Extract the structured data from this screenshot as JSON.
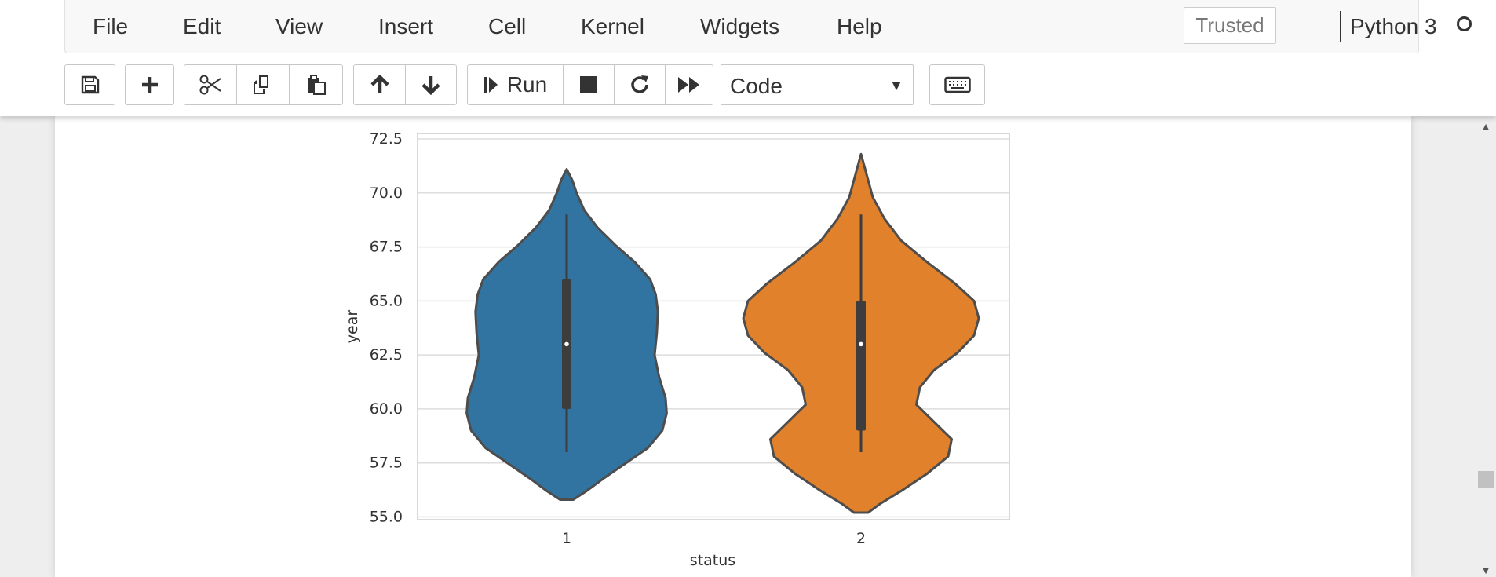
{
  "menubar": {
    "items": [
      "File",
      "Edit",
      "View",
      "Insert",
      "Cell",
      "Kernel",
      "Widgets",
      "Help"
    ],
    "trusted": "Trusted",
    "kernel_name": "Python 3"
  },
  "toolbar": {
    "save_icon": "save-icon",
    "insert_icon": "plus-icon",
    "cut_icon": "scissors-icon",
    "copy_icon": "copy-icon",
    "paste_icon": "paste-icon",
    "move_up_icon": "arrow-up-icon",
    "move_down_icon": "arrow-down-icon",
    "run_label": "Run",
    "interrupt_icon": "stop-icon",
    "restart_icon": "restart-icon",
    "restart_run_all_icon": "fast-forward-icon",
    "cell_type": "Code",
    "command_palette_icon": "keyboard-icon"
  },
  "colors": {
    "series_1": "#3274a1",
    "series_2": "#e1812c",
    "outline": "#4d4d4d",
    "grid": "#dddddd"
  },
  "chart_data": {
    "type": "violin",
    "title": "",
    "xlabel": "status",
    "ylabel": "year",
    "categories": [
      "1",
      "2"
    ],
    "ylim": [
      55.0,
      72.5
    ],
    "yticks": [
      55.0,
      57.5,
      60.0,
      62.5,
      65.0,
      67.5,
      70.0,
      72.5
    ],
    "ytick_labels": [
      "55.0",
      "57.5",
      "60.0",
      "62.5",
      "65.0",
      "67.5",
      "70.0",
      "72.5"
    ],
    "grid": true,
    "violins": [
      {
        "category": "1",
        "kde_range": [
          55.8,
          71.1
        ],
        "min": 58.0,
        "q1": 60.0,
        "median": 63.0,
        "q3": 66.0,
        "max": 69.0,
        "profile": [
          [
            55.8,
            0.06
          ],
          [
            56.2,
            0.18
          ],
          [
            56.8,
            0.34
          ],
          [
            57.5,
            0.54
          ],
          [
            58.2,
            0.74
          ],
          [
            59.0,
            0.87
          ],
          [
            59.8,
            0.91
          ],
          [
            60.5,
            0.9
          ],
          [
            61.5,
            0.84
          ],
          [
            62.5,
            0.8
          ],
          [
            63.5,
            0.82
          ],
          [
            64.5,
            0.83
          ],
          [
            65.3,
            0.81
          ],
          [
            66.0,
            0.76
          ],
          [
            66.8,
            0.62
          ],
          [
            67.6,
            0.44
          ],
          [
            68.4,
            0.28
          ],
          [
            69.2,
            0.16
          ],
          [
            70.0,
            0.09
          ],
          [
            70.6,
            0.05
          ],
          [
            71.1,
            0.0
          ]
        ]
      },
      {
        "category": "2",
        "kde_range": [
          55.2,
          71.8
        ],
        "min": 58.0,
        "q1": 59.0,
        "median": 63.0,
        "q3": 65.0,
        "max": 69.0,
        "profile": [
          [
            55.2,
            0.06
          ],
          [
            55.6,
            0.16
          ],
          [
            56.2,
            0.34
          ],
          [
            57.0,
            0.56
          ],
          [
            57.8,
            0.74
          ],
          [
            58.6,
            0.77
          ],
          [
            59.4,
            0.62
          ],
          [
            60.2,
            0.47
          ],
          [
            61.0,
            0.5
          ],
          [
            61.8,
            0.62
          ],
          [
            62.6,
            0.82
          ],
          [
            63.4,
            0.96
          ],
          [
            64.2,
            1.0
          ],
          [
            65.0,
            0.96
          ],
          [
            65.8,
            0.8
          ],
          [
            66.8,
            0.56
          ],
          [
            67.8,
            0.34
          ],
          [
            68.8,
            0.2
          ],
          [
            69.8,
            0.1
          ],
          [
            70.8,
            0.05
          ],
          [
            71.8,
            0.0
          ]
        ]
      }
    ]
  }
}
